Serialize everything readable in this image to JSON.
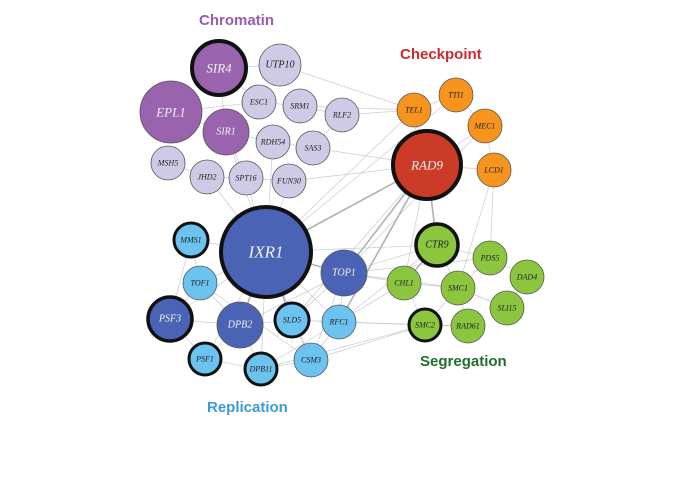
{
  "clusters": {
    "chromatin": {
      "label": "Chromatin",
      "color": "#9b59b6"
    },
    "checkpoint": {
      "label": "Checkpoint",
      "color": "#cc2a2a"
    },
    "segregation": {
      "label": "Segregation",
      "color": "#1e6e2e"
    },
    "replication": {
      "label": "Replication",
      "color": "#3a9bd5"
    }
  },
  "node_colors": {
    "chromatin_major": "#9a63ad",
    "chromatin_minor": "#cfcbe6",
    "checkpoint_major": "#cc3a28",
    "checkpoint_minor": "#f7941d",
    "segregation": "#8cc63f",
    "replication_major": "#4a63b5",
    "replication_minor": "#6cc3ef"
  },
  "nodes": [
    {
      "id": "SIR4",
      "group": "chromatin",
      "tier": "major",
      "highlighted": true
    },
    {
      "id": "UTP10",
      "group": "chromatin",
      "tier": "minor",
      "highlighted": false
    },
    {
      "id": "EPL1",
      "group": "chromatin",
      "tier": "major",
      "highlighted": false
    },
    {
      "id": "ESC1",
      "group": "chromatin",
      "tier": "minor",
      "highlighted": false
    },
    {
      "id": "SRM1",
      "group": "chromatin",
      "tier": "minor",
      "highlighted": false
    },
    {
      "id": "SIR1",
      "group": "chromatin",
      "tier": "major",
      "highlighted": false
    },
    {
      "id": "RLF2",
      "group": "chromatin",
      "tier": "minor",
      "highlighted": false
    },
    {
      "id": "RDH54",
      "group": "chromatin",
      "tier": "minor",
      "highlighted": false
    },
    {
      "id": "SAS3",
      "group": "chromatin",
      "tier": "minor",
      "highlighted": false
    },
    {
      "id": "MSH5",
      "group": "chromatin",
      "tier": "minor",
      "highlighted": false
    },
    {
      "id": "JHD2",
      "group": "chromatin",
      "tier": "minor",
      "highlighted": false
    },
    {
      "id": "SPT16",
      "group": "chromatin",
      "tier": "minor",
      "highlighted": false
    },
    {
      "id": "FUN30",
      "group": "chromatin",
      "tier": "minor",
      "highlighted": false
    },
    {
      "id": "TEL1",
      "group": "checkpoint",
      "tier": "minor",
      "highlighted": false
    },
    {
      "id": "TTI1",
      "group": "checkpoint",
      "tier": "minor",
      "highlighted": false
    },
    {
      "id": "MEC1",
      "group": "checkpoint",
      "tier": "minor",
      "highlighted": false
    },
    {
      "id": "RAD9",
      "group": "checkpoint",
      "tier": "major",
      "highlighted": true
    },
    {
      "id": "LCD1",
      "group": "checkpoint",
      "tier": "minor",
      "highlighted": false
    },
    {
      "id": "CTR9",
      "group": "segregation",
      "tier": "major",
      "highlighted": true
    },
    {
      "id": "PDS5",
      "group": "segregation",
      "tier": "minor",
      "highlighted": false
    },
    {
      "id": "DAD4",
      "group": "segregation",
      "tier": "minor",
      "highlighted": false
    },
    {
      "id": "CHL1",
      "group": "segregation",
      "tier": "minor",
      "highlighted": false
    },
    {
      "id": "SMC1",
      "group": "segregation",
      "tier": "minor",
      "highlighted": false
    },
    {
      "id": "SLI15",
      "group": "segregation",
      "tier": "minor",
      "highlighted": false
    },
    {
      "id": "SMC2",
      "group": "segregation",
      "tier": "minor",
      "highlighted": true
    },
    {
      "id": "RAD61",
      "group": "segregation",
      "tier": "minor",
      "highlighted": false
    },
    {
      "id": "MMS1",
      "group": "replication",
      "tier": "minor",
      "highlighted": true
    },
    {
      "id": "IXR1",
      "group": "replication",
      "tier": "major",
      "highlighted": true
    },
    {
      "id": "TOP1",
      "group": "replication",
      "tier": "major",
      "highlighted": false
    },
    {
      "id": "TOF1",
      "group": "replication",
      "tier": "minor",
      "highlighted": false
    },
    {
      "id": "PSF3",
      "group": "replication",
      "tier": "major",
      "highlighted": true
    },
    {
      "id": "DPB2",
      "group": "replication",
      "tier": "major",
      "highlighted": false
    },
    {
      "id": "SLD5",
      "group": "replication",
      "tier": "minor",
      "highlighted": true
    },
    {
      "id": "RFC1",
      "group": "replication",
      "tier": "minor",
      "highlighted": false
    },
    {
      "id": "PSF1",
      "group": "replication",
      "tier": "minor",
      "highlighted": true
    },
    {
      "id": "DPB11",
      "group": "replication",
      "tier": "minor",
      "highlighted": true
    },
    {
      "id": "CSM3",
      "group": "replication",
      "tier": "minor",
      "highlighted": false
    }
  ]
}
